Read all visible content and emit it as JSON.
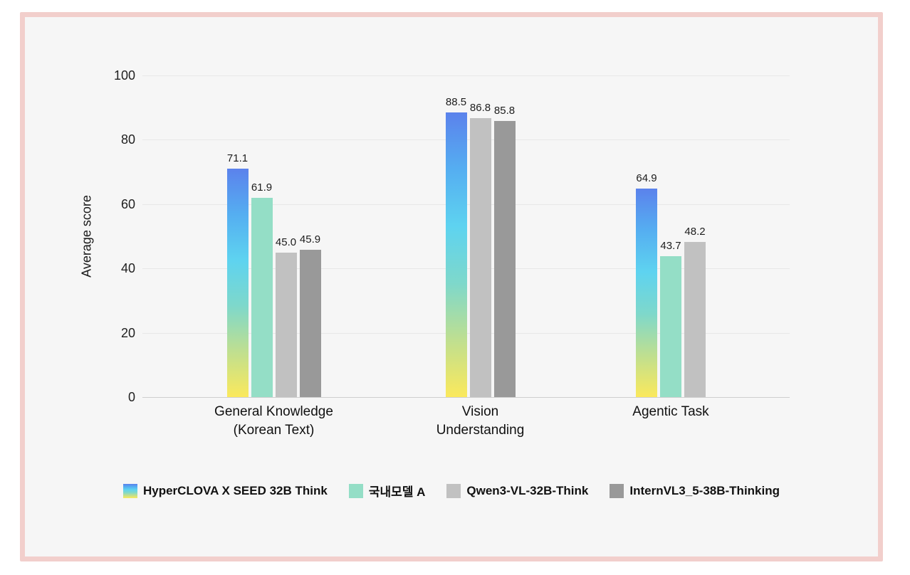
{
  "ui": {
    "card_background": "#f6f6f6",
    "card_border_color": "#f2cfcc",
    "page_background": "#ffffff",
    "gridline_color": "#e8e8e8",
    "axisline_color": "#cfcfcf"
  },
  "chart_data": {
    "type": "bar",
    "title": "",
    "ylabel": "Average score",
    "xlabel": "",
    "ylim": [
      0,
      100
    ],
    "ytick_step": 20,
    "grid": true,
    "legend_position": "bottom",
    "categories": [
      [
        "General Knowledge",
        "(Korean Text)"
      ],
      [
        "Vision",
        "Understanding"
      ],
      [
        "Agentic Task"
      ]
    ],
    "series": [
      {
        "name": "HyperCLOVA X SEED 32B Think",
        "color_type": "gradient",
        "gradient": [
          "#5b82ec",
          "#55aef1",
          "#5ed3f0",
          "#7ed8cb",
          "#bfdf90",
          "#fbe95c"
        ],
        "values": [
          71.1,
          88.5,
          64.9
        ]
      },
      {
        "name": "국내모델 A",
        "color": "#94dec6",
        "values": [
          61.9,
          null,
          43.7
        ]
      },
      {
        "name": "Qwen3-VL-32B-Think",
        "color": "#c1c1c1",
        "values": [
          45.0,
          86.8,
          48.2
        ]
      },
      {
        "name": "InternVL3_5-38B-Thinking",
        "color": "#999999",
        "values": [
          45.9,
          85.8,
          null
        ]
      }
    ]
  }
}
